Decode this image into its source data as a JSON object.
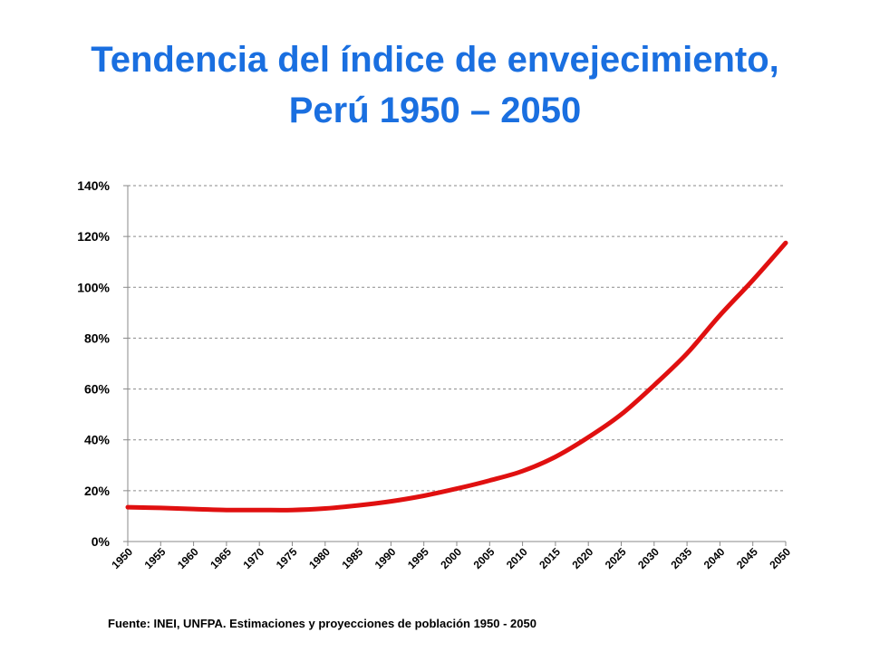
{
  "title": {
    "line1": "Tendencia del índice de envejecimiento,",
    "line2": "Perú 1950 – 2050"
  },
  "source_note": "Fuente: INEI, UNFPA. Estimaciones y proyecciones de población 1950 - 2050",
  "chart_data": {
    "type": "line",
    "title": "Tendencia del índice de envejecimiento, Perú 1950 – 2050",
    "xlabel": "",
    "ylabel": "",
    "grid": true,
    "ylim": [
      0,
      140
    ],
    "y_ticks": [
      0,
      20,
      40,
      60,
      80,
      100,
      120,
      140
    ],
    "y_tick_labels": [
      "0%",
      "20%",
      "40%",
      "60%",
      "80%",
      "100%",
      "120%",
      "140%"
    ],
    "x_ticks": [
      1950,
      1955,
      1960,
      1965,
      1970,
      1975,
      1980,
      1985,
      1990,
      1995,
      2000,
      2005,
      2010,
      2015,
      2020,
      2025,
      2030,
      2035,
      2040,
      2045,
      2050
    ],
    "x_tick_labels": [
      "1950",
      "1955",
      "1960",
      "1965",
      "1970",
      "1975",
      "1980",
      "1985",
      "1990",
      "1995",
      "2000",
      "2005",
      "2010",
      "2015",
      "2020",
      "2025",
      "2030",
      "2035",
      "2040",
      "2045",
      "2050"
    ],
    "series": [
      {
        "color": "#e01010",
        "x": [
          1950,
          1955,
          1960,
          1965,
          1970,
          1975,
          1980,
          1985,
          1990,
          1995,
          2000,
          2005,
          2010,
          2015,
          2020,
          2025,
          2030,
          2035,
          2040,
          2045,
          2050
        ],
        "values": [
          13.5,
          13.2,
          12.8,
          12.4,
          12.4,
          12.4,
          13.0,
          14.2,
          15.8,
          18.0,
          20.8,
          24.0,
          27.7,
          33.3,
          41.0,
          50.0,
          61.5,
          74.0,
          89.0,
          102.8,
          117.5
        ]
      }
    ]
  }
}
